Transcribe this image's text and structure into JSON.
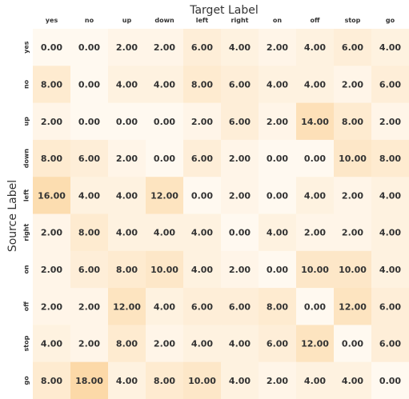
{
  "chart_data": {
    "type": "heatmap",
    "xlabel": "Target Label",
    "ylabel": "Source Label",
    "x_categories": [
      "yes",
      "no",
      "up",
      "down",
      "left",
      "right",
      "on",
      "off",
      "stop",
      "go"
    ],
    "y_categories": [
      "yes",
      "no",
      "up",
      "down",
      "left",
      "right",
      "on",
      "off",
      "stop",
      "go"
    ],
    "values": [
      [
        0.0,
        0.0,
        2.0,
        2.0,
        6.0,
        4.0,
        2.0,
        4.0,
        6.0,
        4.0
      ],
      [
        8.0,
        0.0,
        4.0,
        4.0,
        8.0,
        6.0,
        4.0,
        4.0,
        2.0,
        6.0
      ],
      [
        2.0,
        0.0,
        0.0,
        0.0,
        2.0,
        6.0,
        2.0,
        14.0,
        8.0,
        2.0
      ],
      [
        8.0,
        6.0,
        2.0,
        0.0,
        6.0,
        2.0,
        0.0,
        0.0,
        10.0,
        8.0
      ],
      [
        16.0,
        4.0,
        4.0,
        12.0,
        0.0,
        2.0,
        0.0,
        4.0,
        2.0,
        4.0
      ],
      [
        2.0,
        8.0,
        4.0,
        4.0,
        4.0,
        0.0,
        4.0,
        2.0,
        2.0,
        4.0
      ],
      [
        2.0,
        6.0,
        8.0,
        10.0,
        4.0,
        2.0,
        0.0,
        10.0,
        10.0,
        4.0
      ],
      [
        2.0,
        2.0,
        12.0,
        4.0,
        6.0,
        6.0,
        8.0,
        0.0,
        12.0,
        6.0
      ],
      [
        4.0,
        2.0,
        8.0,
        2.0,
        4.0,
        4.0,
        6.0,
        12.0,
        0.0,
        6.0
      ],
      [
        8.0,
        18.0,
        4.0,
        8.0,
        10.0,
        4.0,
        2.0,
        4.0,
        4.0,
        0.0
      ]
    ],
    "value_format": "0.00",
    "colormap": {
      "low": "#fff9f0",
      "high": "#fcd9a8"
    }
  }
}
